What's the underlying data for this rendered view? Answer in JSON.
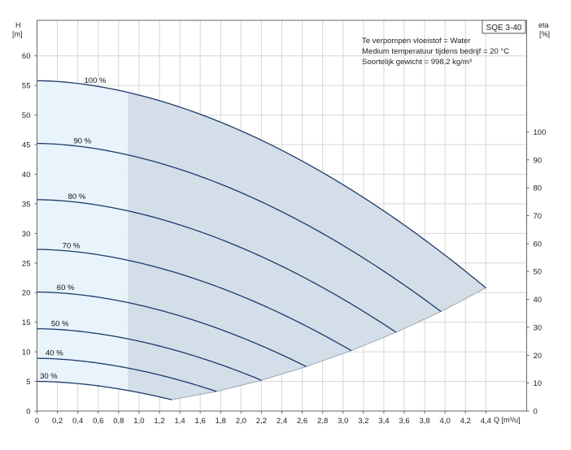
{
  "chart_data": {
    "type": "line",
    "model": "SQE 3-40",
    "info_lines": [
      "Te verpompen vloeistof = Water",
      "Medium temperatuur tijdens bedrijf = 20 °C",
      "Soortelijk gewicht = 998.2 kg/m³"
    ],
    "y_left_label": [
      "H",
      "[m]"
    ],
    "y_right_label": [
      "eta",
      "[%]"
    ],
    "x_label": "Q [m³/u]",
    "x_ticks": [
      "0",
      "0,2",
      "0,4",
      "0,6",
      "0,8",
      "1,0",
      "1,2",
      "1,4",
      "1,6",
      "1,8",
      "2,0",
      "2,2",
      "2,4",
      "2,6",
      "2,8",
      "3,0",
      "3,2",
      "3,4",
      "3,6",
      "3,8",
      "4,0",
      "4,2",
      "4,4"
    ],
    "y_left_ticks": [
      "0",
      "5",
      "10",
      "15",
      "20",
      "25",
      "30",
      "35",
      "40",
      "45",
      "50",
      "55",
      "60"
    ],
    "y_right_ticks": [
      "0",
      "10",
      "20",
      "30",
      "40",
      "50",
      "60",
      "70",
      "80",
      "90",
      "100"
    ],
    "xlim": [
      0,
      4.8
    ],
    "ylim": [
      0,
      66
    ],
    "eta_lim": [
      0,
      140
    ],
    "grid": true,
    "min_flow_q": 0.89,
    "region_colors": {
      "light": "#e8f3fc",
      "dark": "#d3dee9",
      "curve": "#1d3a6b",
      "envelope": "#9aa8b8"
    },
    "series": [
      {
        "name": "100 %",
        "h0": 55.8,
        "q_end": 4.4,
        "h_end": 20.8
      },
      {
        "name": "90 %",
        "h0": 45.2,
        "q_end": 3.96,
        "h_end": 16.8
      },
      {
        "name": "80 %",
        "h0": 35.7,
        "q_end": 3.52,
        "h_end": 13.3
      },
      {
        "name": "70 %",
        "h0": 27.3,
        "q_end": 3.08,
        "h_end": 10.2
      },
      {
        "name": "60 %",
        "h0": 20.1,
        "q_end": 2.64,
        "h_end": 7.5
      },
      {
        "name": "50 %",
        "h0": 13.9,
        "q_end": 2.2,
        "h_end": 5.2
      },
      {
        "name": "40 %",
        "h0": 8.9,
        "q_end": 1.76,
        "h_end": 3.3
      },
      {
        "name": "30 %",
        "h0": 5.0,
        "q_end": 1.32,
        "h_end": 1.9
      }
    ]
  }
}
